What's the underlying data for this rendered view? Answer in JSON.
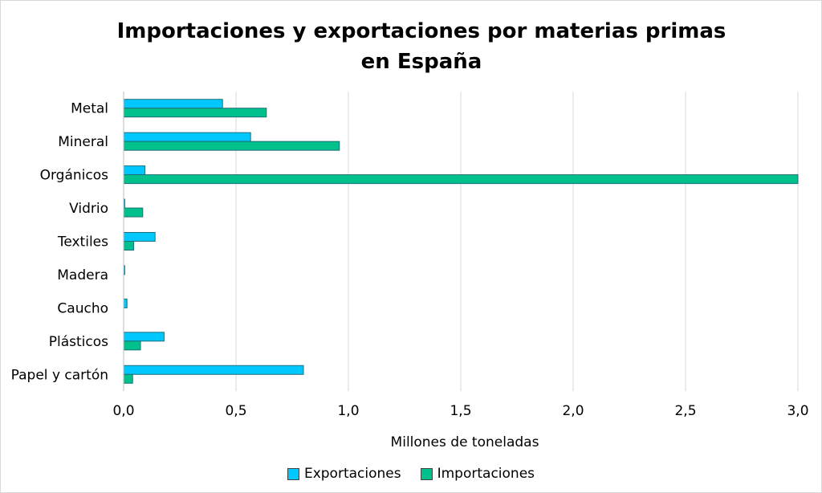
{
  "chart_data": {
    "type": "bar",
    "orientation": "horizontal",
    "title": "Importaciones y exportaciones por materias primas en España",
    "xlabel": "Millones de toneladas",
    "ylabel": "",
    "categories": [
      "Metal",
      "Mineral",
      "Orgánicos",
      "Vidrio",
      "Textiles",
      "Madera",
      "Caucho",
      "Plásticos",
      "Papel y cartón"
    ],
    "series": [
      {
        "name": "Exportaciones",
        "color": "#00c8ff",
        "values": [
          0.44,
          0.565,
          0.095,
          0.005,
          0.14,
          0.005,
          0.015,
          0.18,
          0.8
        ]
      },
      {
        "name": "Importaciones",
        "color": "#00c08b",
        "values": [
          0.635,
          0.96,
          3.0,
          0.085,
          0.045,
          0.0,
          0.0,
          0.075,
          0.04
        ]
      }
    ],
    "xlim": [
      0,
      3.0
    ],
    "xticks": [
      "0,0",
      "0,5",
      "1,0",
      "1,5",
      "2,0",
      "2,5",
      "3,0"
    ],
    "grid": true,
    "legend": "bottom"
  }
}
